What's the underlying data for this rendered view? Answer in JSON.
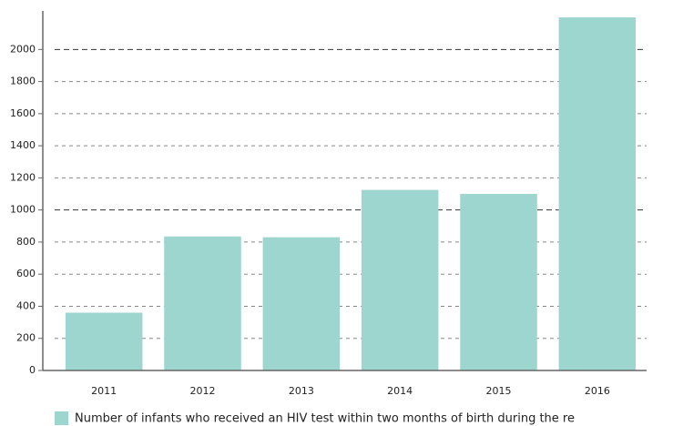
{
  "chart_data": {
    "type": "bar",
    "categories": [
      "2011",
      "2012",
      "2013",
      "2014",
      "2015",
      "2016"
    ],
    "series": [
      {
        "name": "Number of infants who received an HIV test within two months of birth during the re",
        "color": "#9dd6cf",
        "values": [
          360,
          835,
          830,
          1125,
          1100,
          2200
        ]
      }
    ],
    "ylim": [
      0,
      2240
    ],
    "yticks": [
      0,
      200,
      400,
      600,
      800,
      1000,
      1200,
      1400,
      1600,
      1800,
      2000
    ],
    "grid": true
  }
}
